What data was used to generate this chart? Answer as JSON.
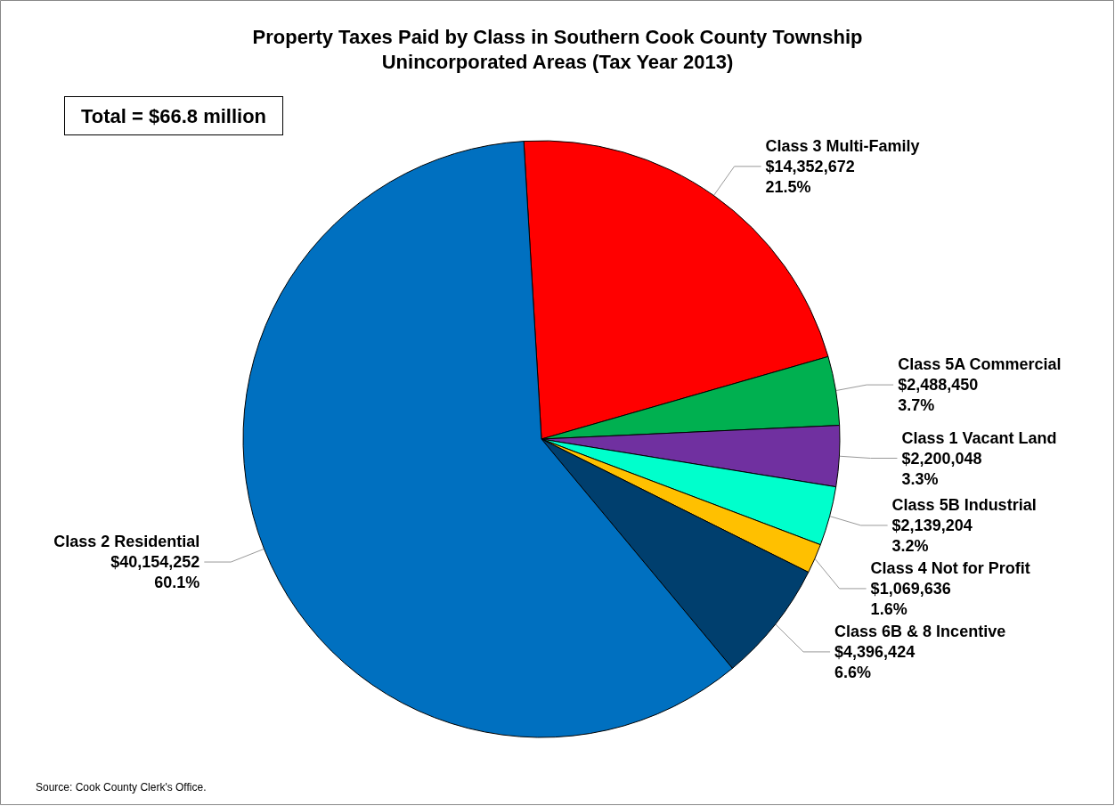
{
  "chart_data": {
    "type": "pie",
    "title": "Property Taxes Paid by Class in Southern Cook County Township\nUnincorporated Areas (Tax Year 2013)",
    "categories": [
      "Class 3 Multi-Family",
      "Class 5A Commercial",
      "Class 1 Vacant Land",
      "Class 5B Industrial",
      "Class 4 Not for Profit",
      "Class 6B & 8 Incentive",
      "Class 2 Residential"
    ],
    "values": [
      14352672,
      2488450,
      2200048,
      2139204,
      1069636,
      4396424,
      40154252
    ],
    "value_labels": [
      "$14,352,672\n21.5%",
      "$2,488,450\n3.7%",
      "$2,200,048\n3.3%",
      "$2,139,204\n3.2%",
      "$1,069,636\n1.6%",
      "$4,396,424\n6.6%",
      "$40,154,252\n60.1%"
    ],
    "colors": [
      "#ff0000",
      "#00b050",
      "#7030a0",
      "#00ffcc",
      "#ffc000",
      "#003f6e",
      "#0070c0"
    ],
    "annotations": [
      "Total = $66.8 million",
      "Source: Cook County Clerk's Office."
    ],
    "legend": false
  }
}
